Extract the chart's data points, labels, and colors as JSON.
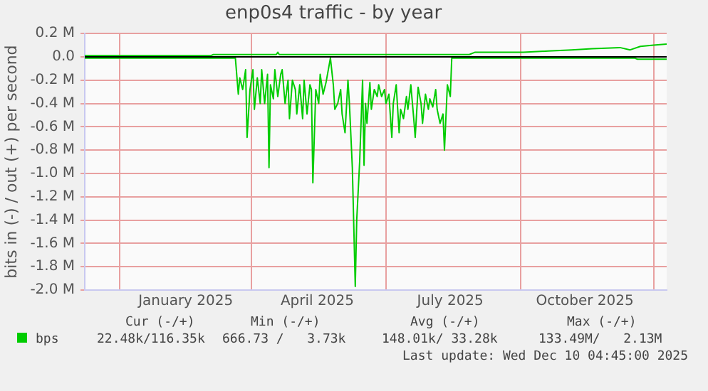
{
  "chart_data": {
    "type": "line",
    "title": "enp0s4 traffic - by year",
    "ylabel": "bits in (-) / out (+) per second",
    "xlim": [
      "2024-11-07",
      "2025-12-10"
    ],
    "xticks": [
      {
        "value": "2024-12-01",
        "label": null
      },
      {
        "value": "2025-01-15",
        "label": "January 2025"
      },
      {
        "value": "2025-03-01",
        "label": null
      },
      {
        "value": "2025-04-15",
        "label": "April 2025"
      },
      {
        "value": "2025-06-01",
        "label": null
      },
      {
        "value": "2025-07-15",
        "label": "July 2025"
      },
      {
        "value": "2025-09-01",
        "label": null
      },
      {
        "value": "2025-10-15",
        "label": "October 2025"
      },
      {
        "value": "2025-12-01",
        "label": null
      }
    ],
    "ylim": [
      -2.0,
      0.2
    ],
    "yticks": [
      {
        "value": -2.0,
        "label": "-2.0 M"
      },
      {
        "value": -1.8,
        "label": "-1.8 M"
      },
      {
        "value": -1.6,
        "label": "-1.6 M"
      },
      {
        "value": -1.4,
        "label": "-1.4 M"
      },
      {
        "value": -1.2,
        "label": "-1.2 M"
      },
      {
        "value": -1.0,
        "label": "-1.0 M"
      },
      {
        "value": -0.8,
        "label": "-0.8 M"
      },
      {
        "value": -0.6,
        "label": "-0.6 M"
      },
      {
        "value": -0.4,
        "label": "-0.4 M"
      },
      {
        "value": -0.2,
        "label": "-0.2 M"
      },
      {
        "value": 0,
        "label": "0.0"
      },
      {
        "value": 0.2,
        "label": "0.2 M"
      }
    ],
    "grid": true,
    "legend": "bottom",
    "series": [
      {
        "name": "bps",
        "color": "#00cc00",
        "x": [
          "2024-11-07",
          "2025-02-17",
          "2025-02-18",
          "2025-02-20",
          "2025-02-21",
          "2025-02-23",
          "2025-02-25",
          "2025-02-26",
          "2025-02-28",
          "2025-03-02",
          "2025-03-03",
          "2025-03-05",
          "2025-03-07",
          "2025-03-08",
          "2025-03-10",
          "2025-03-12",
          "2025-03-13",
          "2025-03-14",
          "2025-03-16",
          "2025-03-17",
          "2025-03-19",
          "2025-03-21",
          "2025-03-22",
          "2025-03-24",
          "2025-03-26",
          "2025-03-27",
          "2025-03-29",
          "2025-03-31",
          "2025-04-01",
          "2025-04-03",
          "2025-04-05",
          "2025-04-06",
          "2025-04-08",
          "2025-04-10",
          "2025-04-11",
          "2025-04-12",
          "2025-04-14",
          "2025-04-16",
          "2025-04-17",
          "2025-04-19",
          "2025-04-21",
          "2025-04-22",
          "2025-04-24",
          "2025-04-26",
          "2025-04-27",
          "2025-04-29",
          "2025-05-01",
          "2025-05-02",
          "2025-05-04",
          "2025-05-06",
          "2025-05-07",
          "2025-05-09",
          "2025-05-11",
          "2025-05-12",
          "2025-05-14",
          "2025-05-16",
          "2025-05-17",
          "2025-05-18",
          "2025-05-19",
          "2025-05-21",
          "2025-05-22",
          "2025-05-24",
          "2025-05-26",
          "2025-05-27",
          "2025-05-29",
          "2025-05-31",
          "2025-06-01",
          "2025-06-03",
          "2025-06-05",
          "2025-06-06",
          "2025-06-08",
          "2025-06-10",
          "2025-06-11",
          "2025-06-13",
          "2025-06-15",
          "2025-06-16",
          "2025-06-18",
          "2025-06-20",
          "2025-06-21",
          "2025-06-23",
          "2025-06-25",
          "2025-06-26",
          "2025-06-28",
          "2025-06-30",
          "2025-07-01",
          "2025-07-03",
          "2025-07-05",
          "2025-07-06",
          "2025-07-08",
          "2025-07-10",
          "2025-07-11",
          "2025-07-13",
          "2025-07-15",
          "2025-07-16",
          "2025-11-18",
          "2025-11-20",
          "2025-12-10"
        ],
        "values": [
          -0.01,
          -0.01,
          -0.01,
          -0.32,
          -0.18,
          -0.28,
          -0.11,
          -0.69,
          -0.28,
          -0.11,
          -0.45,
          -0.18,
          -0.4,
          -0.11,
          -0.4,
          -0.15,
          -0.95,
          -0.24,
          -0.36,
          -0.11,
          -0.34,
          -0.15,
          -0.11,
          -0.4,
          -0.2,
          -0.53,
          -0.2,
          -0.28,
          -0.49,
          -0.24,
          -0.53,
          -0.2,
          -0.49,
          -0.24,
          -0.28,
          -1.08,
          -0.28,
          -0.4,
          -0.15,
          -0.32,
          -0.22,
          -0.15,
          -0.01,
          -0.24,
          -0.45,
          -0.4,
          -0.28,
          -0.49,
          -0.65,
          -0.2,
          -0.4,
          -0.95,
          -1.97,
          -1.4,
          -0.9,
          -0.2,
          -0.93,
          -0.4,
          -0.57,
          -0.22,
          -0.45,
          -0.28,
          -0.34,
          -0.24,
          -0.34,
          -0.28,
          -0.4,
          -0.32,
          -0.69,
          -0.4,
          -0.24,
          -0.65,
          -0.45,
          -0.53,
          -0.34,
          -0.45,
          -0.24,
          -0.53,
          -0.69,
          -0.26,
          -0.4,
          -0.57,
          -0.32,
          -0.45,
          -0.36,
          -0.43,
          -0.28,
          -0.45,
          -0.57,
          -0.49,
          -0.8,
          -0.24,
          -0.34,
          -0.01,
          -0.01,
          -0.02,
          -0.02
        ]
      },
      {
        "color": "#00cc00",
        "x": [
          "2024-11-07",
          "2025-02-01",
          "2025-02-03",
          "2025-03-18",
          "2025-03-19",
          "2025-03-20",
          "2025-07-28",
          "2025-08-01",
          "2025-08-20",
          "2025-09-03",
          "2025-09-20",
          "2025-10-06",
          "2025-10-20",
          "2025-11-08",
          "2025-11-15",
          "2025-11-22",
          "2025-12-01",
          "2025-12-10"
        ],
        "values": [
          0.01,
          0.01,
          0.02,
          0.02,
          0.04,
          0.02,
          0.02,
          0.04,
          0.04,
          0.04,
          0.05,
          0.06,
          0.07,
          0.08,
          0.06,
          0.09,
          0.1,
          0.11
        ]
      }
    ],
    "ref_lines": [
      {
        "axis": "y",
        "value": 0,
        "color": "#000000"
      }
    ],
    "annotations": [
      "Cur (-/+)",
      "Min (-/+)",
      "Avg (-/+)",
      "Max (-/+)",
      "22.48k/116.35k",
      "666.73 /   3.73k",
      "148.01k/ 33.28k",
      "133.49M/   2.13M",
      "Last update: Wed Dec 10 04:45:00 2025"
    ]
  }
}
